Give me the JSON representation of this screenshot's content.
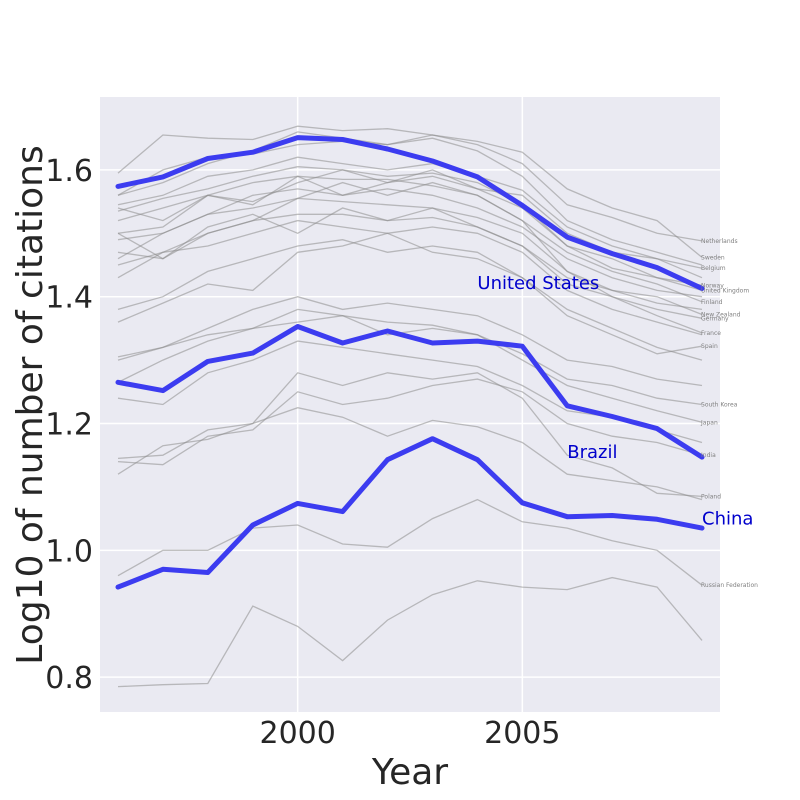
{
  "chart_data": {
    "type": "line",
    "title": "",
    "xlabel": "Year",
    "ylabel": "Log10 of number of citations",
    "xlim": [
      1995.6,
      2009.4
    ],
    "ylim": [
      0.745,
      1.715
    ],
    "x_ticks": [
      "2000",
      "2005"
    ],
    "y_ticks": [
      "0.8",
      "1.0",
      "1.2",
      "1.4",
      "1.6"
    ],
    "grid": true,
    "x": [
      1996,
      1997,
      1998,
      1999,
      2000,
      2001,
      2002,
      2003,
      2004,
      2005,
      2006,
      2007,
      2008,
      2009
    ],
    "highlight_color": "#3c3cf0",
    "background_color": "#eaeaf2",
    "highlight_series": [
      {
        "name": "United States",
        "values": [
          1.574,
          1.589,
          1.618,
          1.628,
          1.651,
          1.648,
          1.633,
          1.614,
          1.589,
          1.544,
          1.494,
          1.468,
          1.446,
          1.413
        ]
      },
      {
        "name": "Brazil",
        "values": [
          1.265,
          1.252,
          1.298,
          1.311,
          1.353,
          1.327,
          1.346,
          1.327,
          1.33,
          1.322,
          1.228,
          1.211,
          1.192,
          1.147
        ]
      },
      {
        "name": "China",
        "values": [
          0.942,
          0.97,
          0.965,
          1.04,
          1.074,
          1.061,
          1.143,
          1.176,
          1.143,
          1.075,
          1.053,
          1.055,
          1.049,
          1.035
        ]
      }
    ],
    "highlight_label_positions": [
      {
        "name": "United States",
        "x": 2004.0,
        "y": 1.412
      },
      {
        "name": "Brazil",
        "x": 2006.0,
        "y": 1.146
      },
      {
        "name": "China",
        "x": 2009.0,
        "y": 1.041
      }
    ],
    "series": [
      {
        "name": "Netherlands",
        "values": [
          1.595,
          1.655,
          1.65,
          1.648,
          1.669,
          1.662,
          1.665,
          1.655,
          1.64,
          1.61,
          1.545,
          1.525,
          1.5,
          1.488
        ]
      },
      {
        "name": "Sweden",
        "values": [
          1.56,
          1.6,
          1.62,
          1.625,
          1.64,
          1.645,
          1.64,
          1.655,
          1.645,
          1.628,
          1.57,
          1.54,
          1.52,
          1.462
        ]
      },
      {
        "name": "Belgium",
        "values": [
          1.545,
          1.56,
          1.59,
          1.6,
          1.62,
          1.61,
          1.6,
          1.61,
          1.59,
          1.568,
          1.51,
          1.48,
          1.46,
          1.445
        ]
      },
      {
        "name": "Norway",
        "values": [
          1.5,
          1.51,
          1.56,
          1.55,
          1.58,
          1.6,
          1.58,
          1.59,
          1.57,
          1.54,
          1.48,
          1.445,
          1.43,
          1.418
        ]
      },
      {
        "name": "United Kingdom",
        "values": [
          1.535,
          1.555,
          1.57,
          1.59,
          1.605,
          1.6,
          1.59,
          1.595,
          1.58,
          1.545,
          1.48,
          1.46,
          1.43,
          1.41
        ]
      },
      {
        "name": "Finland",
        "values": [
          1.52,
          1.54,
          1.56,
          1.58,
          1.59,
          1.585,
          1.585,
          1.575,
          1.56,
          1.52,
          1.47,
          1.44,
          1.42,
          1.392
        ]
      },
      {
        "name": "New Zealand",
        "values": [
          1.47,
          1.46,
          1.5,
          1.52,
          1.555,
          1.58,
          1.56,
          1.58,
          1.56,
          1.52,
          1.44,
          1.41,
          1.4,
          1.372
        ]
      },
      {
        "name": "Germany",
        "values": [
          1.46,
          1.5,
          1.53,
          1.54,
          1.555,
          1.55,
          1.545,
          1.54,
          1.525,
          1.5,
          1.44,
          1.4,
          1.38,
          1.366
        ]
      },
      {
        "name": "France",
        "values": [
          1.45,
          1.47,
          1.5,
          1.52,
          1.53,
          1.53,
          1.52,
          1.525,
          1.51,
          1.48,
          1.42,
          1.4,
          1.37,
          1.343
        ]
      },
      {
        "name": "Spain",
        "values": [
          1.38,
          1.4,
          1.44,
          1.46,
          1.48,
          1.49,
          1.47,
          1.48,
          1.47,
          1.43,
          1.37,
          1.34,
          1.31,
          1.322
        ]
      },
      {
        "name": "South Korea",
        "values": [
          1.265,
          1.3,
          1.33,
          1.35,
          1.36,
          1.37,
          1.34,
          1.35,
          1.34,
          1.31,
          1.27,
          1.26,
          1.24,
          1.23
        ]
      },
      {
        "name": "Japan",
        "values": [
          1.305,
          1.32,
          1.34,
          1.35,
          1.38,
          1.37,
          1.36,
          1.355,
          1.34,
          1.3,
          1.26,
          1.24,
          1.22,
          1.202
        ]
      },
      {
        "name": "India",
        "values": [
          1.14,
          1.135,
          1.18,
          1.19,
          1.25,
          1.23,
          1.24,
          1.26,
          1.27,
          1.25,
          1.2,
          1.18,
          1.17,
          1.15
        ]
      },
      {
        "name": "Poland",
        "values": [
          1.12,
          1.165,
          1.175,
          1.2,
          1.28,
          1.26,
          1.28,
          1.27,
          1.28,
          1.24,
          1.15,
          1.13,
          1.09,
          1.085
        ]
      },
      {
        "name": "Russian Federation",
        "values": [
          0.96,
          1.0,
          1.0,
          1.035,
          1.04,
          1.01,
          1.005,
          1.05,
          1.08,
          1.045,
          1.035,
          1.015,
          1.0,
          0.945
        ]
      },
      {
        "name": "",
        "values": [
          0.785,
          0.788,
          0.79,
          0.912,
          0.88,
          0.826,
          0.89,
          0.93,
          0.952,
          0.942,
          0.938,
          0.957,
          0.942,
          0.858
        ]
      },
      {
        "name": "",
        "values": [
          1.56,
          1.58,
          1.61,
          1.63,
          1.66,
          1.65,
          1.64,
          1.65,
          1.63,
          1.59,
          1.52,
          1.49,
          1.47,
          1.45
        ]
      },
      {
        "name": "",
        "values": [
          1.49,
          1.5,
          1.53,
          1.56,
          1.57,
          1.56,
          1.57,
          1.56,
          1.54,
          1.51,
          1.46,
          1.43,
          1.41,
          1.4
        ]
      },
      {
        "name": "",
        "values": [
          1.43,
          1.47,
          1.48,
          1.5,
          1.52,
          1.51,
          1.5,
          1.51,
          1.5,
          1.47,
          1.41,
          1.38,
          1.36,
          1.34
        ]
      },
      {
        "name": "",
        "values": [
          1.36,
          1.39,
          1.42,
          1.41,
          1.47,
          1.48,
          1.5,
          1.47,
          1.46,
          1.43,
          1.38,
          1.35,
          1.32,
          1.3
        ]
      },
      {
        "name": "",
        "values": [
          1.3,
          1.32,
          1.35,
          1.38,
          1.4,
          1.38,
          1.39,
          1.38,
          1.37,
          1.34,
          1.3,
          1.29,
          1.27,
          1.26
        ]
      },
      {
        "name": "",
        "values": [
          1.24,
          1.23,
          1.28,
          1.3,
          1.33,
          1.32,
          1.31,
          1.3,
          1.29,
          1.26,
          1.22,
          1.21,
          1.19,
          1.17
        ]
      },
      {
        "name": "",
        "values": [
          1.145,
          1.15,
          1.19,
          1.2,
          1.225,
          1.21,
          1.18,
          1.205,
          1.195,
          1.17,
          1.12,
          1.11,
          1.1,
          1.08
        ]
      },
      {
        "name": "",
        "values": [
          1.54,
          1.52,
          1.56,
          1.545,
          1.59,
          1.56,
          1.58,
          1.6,
          1.57,
          1.56,
          1.5,
          1.47,
          1.46,
          1.43
        ]
      },
      {
        "name": "",
        "values": [
          1.5,
          1.46,
          1.51,
          1.53,
          1.5,
          1.54,
          1.52,
          1.54,
          1.51,
          1.48,
          1.43,
          1.41,
          1.39,
          1.38
        ]
      }
    ]
  }
}
